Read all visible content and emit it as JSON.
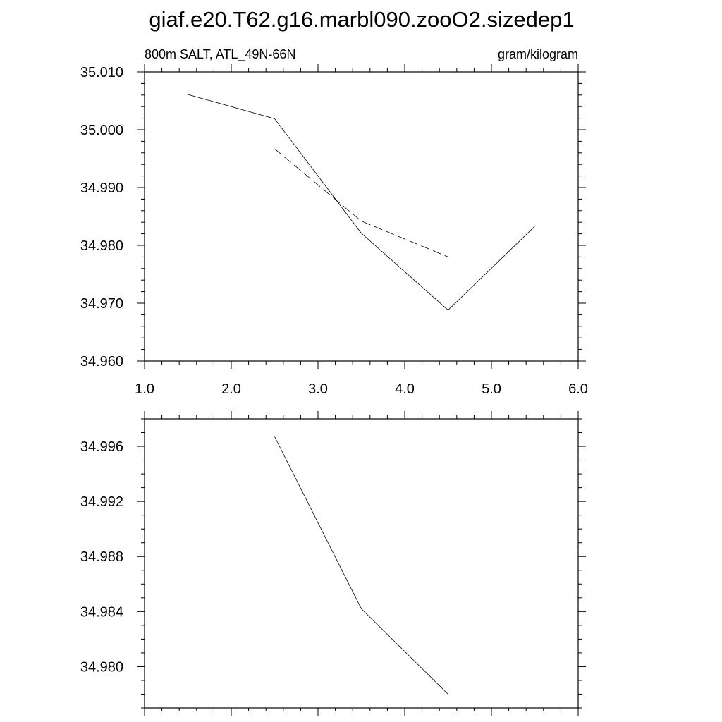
{
  "figure_title": "giaf.e20.T62.g16.marbl090.zooO2.sizedep1",
  "chart_data": [
    {
      "type": "line",
      "left_title": "800m SALT, ATL_49N-66N",
      "right_title": "gram/kilogram",
      "xlim": [
        1.0,
        6.0
      ],
      "ylim": [
        34.96,
        35.01
      ],
      "x_ticks": [
        "1.0",
        "2.0",
        "3.0",
        "4.0",
        "5.0",
        "6.0"
      ],
      "y_ticks": [
        "34.960",
        "34.970",
        "34.980",
        "34.990",
        "35.000",
        "35.010"
      ],
      "grid": false,
      "series": [
        {
          "style": "solid",
          "x": [
            1.5,
            2.5,
            3.5,
            4.5,
            5.5
          ],
          "y": [
            35.0061,
            35.0019,
            34.9821,
            34.9688,
            34.9833
          ]
        },
        {
          "style": "dashed",
          "x": [
            2.5,
            3.5,
            4.5
          ],
          "y": [
            34.9967,
            34.9842,
            34.978
          ]
        }
      ]
    },
    {
      "type": "line",
      "xlim": [
        1.0,
        6.0
      ],
      "ylim": [
        34.977,
        34.998
      ],
      "x_ticks": [],
      "y_ticks": [
        "34.980",
        "34.984",
        "34.988",
        "34.992",
        "34.996"
      ],
      "grid": false,
      "series": [
        {
          "style": "solid",
          "x": [
            2.5,
            3.5,
            4.5
          ],
          "y": [
            34.9967,
            34.9842,
            34.978
          ]
        }
      ]
    }
  ]
}
